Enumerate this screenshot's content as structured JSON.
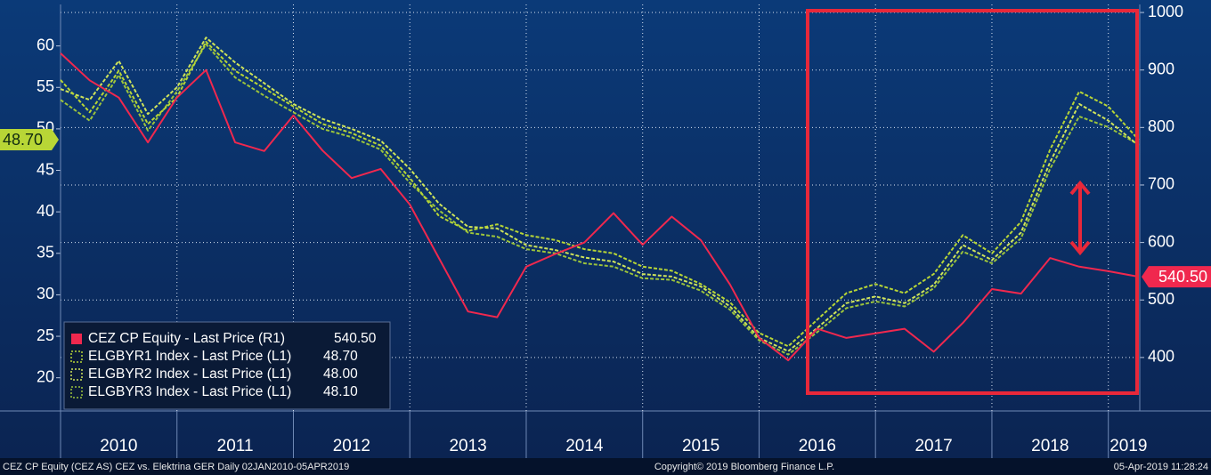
{
  "chart_data": {
    "type": "line",
    "x": [
      2010,
      2010.25,
      2010.5,
      2010.75,
      2011,
      2011.25,
      2011.5,
      2011.75,
      2012,
      2012.25,
      2012.5,
      2012.75,
      2013,
      2013.25,
      2013.5,
      2013.75,
      2014,
      2014.25,
      2014.5,
      2014.75,
      2015,
      2015.25,
      2015.5,
      2015.75,
      2016,
      2016.25,
      2016.5,
      2016.75,
      2017,
      2017.25,
      2017.5,
      2017.75,
      2018,
      2018.25,
      2018.5,
      2018.75,
      2019,
      2019.26
    ],
    "xlim": [
      2010,
      2019.27
    ],
    "xticks": [
      2010,
      2011,
      2012,
      2013,
      2014,
      2015,
      2016,
      2017,
      2018,
      2019
    ],
    "ylim": [
      16,
      65
    ],
    "yticks": [
      20,
      25,
      30,
      35,
      40,
      45,
      50,
      55,
      60
    ],
    "y2lim": [
      307,
      1014
    ],
    "y2ticks": [
      400,
      500,
      600,
      700,
      800,
      900,
      1000
    ],
    "grid": true,
    "legend": "lower left",
    "series": [
      {
        "name": "CEZ CP Equity - Last Price (R1)",
        "color": "#f0284e",
        "axis": "y2",
        "line_style": "solid",
        "last": {
          "value": 540.5,
          "label": "540.50"
        },
        "values": [
          929,
          882,
          852,
          774,
          852,
          900,
          774,
          759,
          821,
          760,
          712,
          728,
          666,
          573,
          480,
          470,
          558,
          580,
          600,
          651,
          596,
          645,
          604,
          527,
          434,
          395,
          450,
          434,
          442,
          450,
          410,
          460,
          519,
          511,
          573,
          558,
          550,
          540.5
        ]
      },
      {
        "name": "ELGBYR1 Index - Last Price (L1)",
        "color": "#b8d636",
        "line_style": "dashed",
        "last": {
          "value": 48.7,
          "label": "48.70"
        },
        "values": [
          55.9,
          52,
          57,
          50.6,
          53.8,
          60.5,
          57,
          54.9,
          52.7,
          50.6,
          49.5,
          48,
          44.1,
          39.5,
          37.7,
          38.5,
          37.2,
          36.6,
          35.5,
          35,
          33.4,
          32.9,
          31.3,
          29.1,
          25.4,
          23.8,
          27,
          30.2,
          31.3,
          30.2,
          32.5,
          37.2,
          35,
          38.8,
          47.5,
          54.5,
          52.7,
          48.7
        ]
      },
      {
        "name": "ELGBYR2 Index - Last Price (L1)",
        "color": "#cfe45a",
        "line_style": "dashed",
        "last": {
          "value": 48,
          "label": "48.00"
        },
        "values": [
          54.8,
          53.5,
          58.2,
          51.8,
          55,
          61,
          58,
          55.5,
          53,
          51.2,
          50,
          48.6,
          45.2,
          41,
          38.2,
          38,
          36,
          35.4,
          34.5,
          34,
          32.5,
          32.2,
          31,
          28.6,
          24.8,
          23.2,
          26,
          29,
          29.8,
          29,
          31.2,
          36,
          34.2,
          37.5,
          46,
          53,
          51,
          48
        ]
      },
      {
        "name": "ELGBYR3 Index - Last Price (L1)",
        "color": "#9cc43c",
        "line_style": "dashed",
        "last": {
          "value": 48.1,
          "label": "48.10"
        },
        "values": [
          53.5,
          51,
          56.5,
          49.8,
          54.5,
          60.2,
          56.2,
          54,
          52,
          50,
          49,
          47.5,
          43.5,
          40.2,
          37.5,
          37,
          35.5,
          35,
          33.8,
          33.4,
          32,
          31.8,
          30.5,
          28.2,
          24.5,
          22.8,
          25.5,
          28.4,
          29.2,
          28.6,
          30.8,
          35.2,
          33.8,
          36.8,
          45.2,
          51.5,
          50.2,
          48.1
        ]
      }
    ],
    "footer": {
      "left": "CEZ CP Equity (CEZ AS) CEZ vs. Elektrina GER  Daily 02JAN2010-05APR2019",
      "center": "Copyright© 2019 Bloomberg Finance L.P.",
      "right": "05-Apr-2019 11:28:24"
    }
  }
}
